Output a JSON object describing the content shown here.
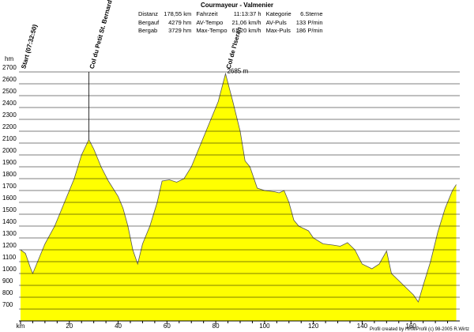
{
  "chart_data": {
    "type": "area",
    "title": "Courmayeur - Valmenier",
    "stats": [
      [
        "Distanz",
        "178,55 km",
        "Fahrzeit",
        "11:13:37 h",
        "Kategorie",
        "6.Sterne"
      ],
      [
        "Bergauf",
        "4279 hm",
        "AV-Tempo",
        "21,06 km/h",
        "AV-Puls",
        "133 P/min"
      ],
      [
        "Bergab",
        "3729 hm",
        "Max-Tempo",
        "61,20 km/h",
        "Max-Puls",
        "186 P/min"
      ]
    ],
    "y_label": "hm",
    "x": [
      0,
      2,
      4,
      5,
      7,
      10,
      14,
      18,
      22,
      25,
      28,
      30,
      33,
      36,
      40,
      42,
      44,
      46,
      48,
      50,
      53,
      56,
      58,
      61,
      64,
      67,
      70,
      74,
      78,
      81,
      84,
      87,
      90,
      92,
      94,
      97,
      100,
      104,
      106,
      108,
      110,
      112,
      114,
      118,
      120,
      124,
      128,
      131,
      134,
      137,
      140,
      144,
      147,
      150,
      152,
      155,
      158,
      161,
      163,
      165,
      168,
      171,
      174,
      177,
      178.55
    ],
    "values": [
      1200,
      1170,
      1050,
      1000,
      1100,
      1250,
      1400,
      1600,
      1800,
      2000,
      2130,
      2050,
      1900,
      1780,
      1650,
      1550,
      1400,
      1200,
      1080,
      1250,
      1400,
      1600,
      1780,
      1790,
      1770,
      1800,
      1900,
      2100,
      2300,
      2450,
      2685,
      2450,
      2200,
      1950,
      1900,
      1720,
      1700,
      1690,
      1680,
      1700,
      1600,
      1450,
      1400,
      1360,
      1300,
      1250,
      1240,
      1230,
      1260,
      1200,
      1080,
      1040,
      1080,
      1190,
      1000,
      940,
      880,
      820,
      760,
      900,
      1100,
      1350,
      1550,
      1700,
      1750
    ],
    "color": "#ffff00",
    "xlim": [
      0,
      180
    ],
    "ylim": [
      600,
      2700
    ],
    "xticks": [
      {
        "value": 0,
        "label": "km"
      },
      20,
      40,
      60,
      80,
      100,
      120,
      140,
      160
    ],
    "yticks": [
      700,
      800,
      900,
      1000,
      1100,
      1200,
      1300,
      1400,
      1500,
      1600,
      1700,
      1800,
      1900,
      2000,
      2100,
      2200,
      2300,
      2400,
      2500,
      2600,
      2700
    ],
    "grid": true,
    "annotations": [
      {
        "text": "Start (07:32:50)",
        "x": 0,
        "y": 1200
      },
      {
        "text": "Col du Petit St. Bernard",
        "x": 28,
        "y": 2130
      },
      {
        "text": "Col de l'Iseran",
        "x": 84,
        "y": 2685,
        "value_label": "2685 m"
      }
    ],
    "footer": "Profil created by HRMProfil (c) 98-2005 R.Wirtz"
  }
}
